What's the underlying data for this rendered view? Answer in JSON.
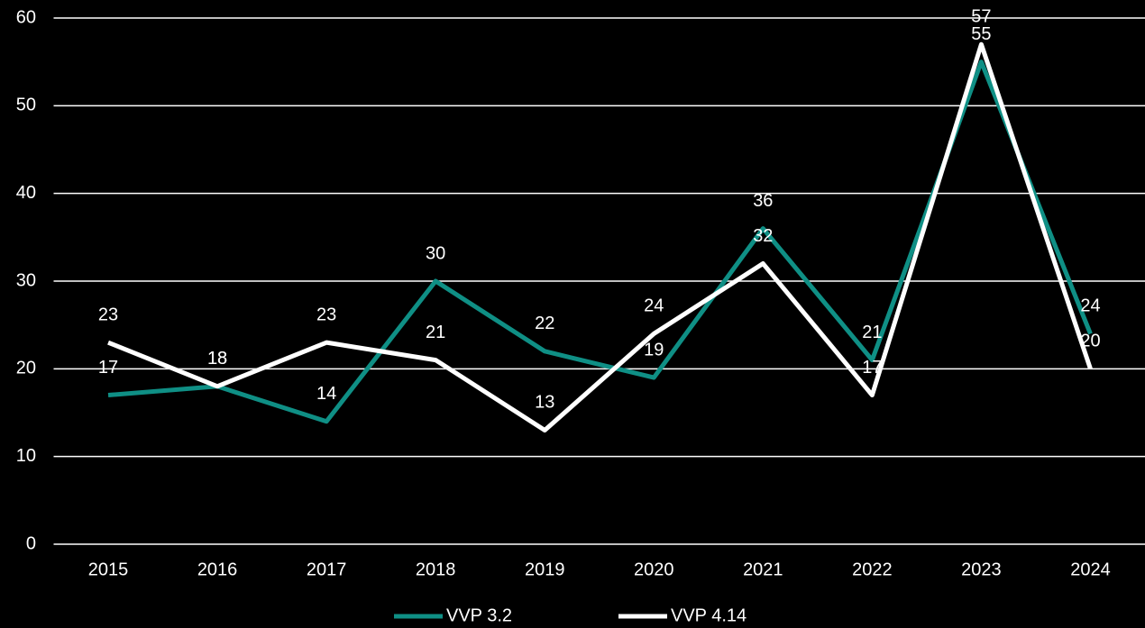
{
  "chart_data": {
    "type": "line",
    "categories": [
      "2015",
      "2016",
      "2017",
      "2018",
      "2019",
      "2020",
      "2021",
      "2022",
      "2023",
      "2024"
    ],
    "series": [
      {
        "name": "VVP 3.2",
        "color": "#0f8f85",
        "values": [
          17,
          18,
          14,
          30,
          22,
          19,
          36,
          21,
          55,
          24
        ]
      },
      {
        "name": "VVP 4.14",
        "color": "#ffffff",
        "values": [
          23,
          18,
          23,
          21,
          13,
          24,
          32,
          17,
          57,
          20
        ]
      }
    ],
    "ylim": [
      0,
      60
    ],
    "yticks": [
      0,
      10,
      20,
      30,
      40,
      50,
      60
    ],
    "grid": true,
    "legend": "bottom"
  }
}
